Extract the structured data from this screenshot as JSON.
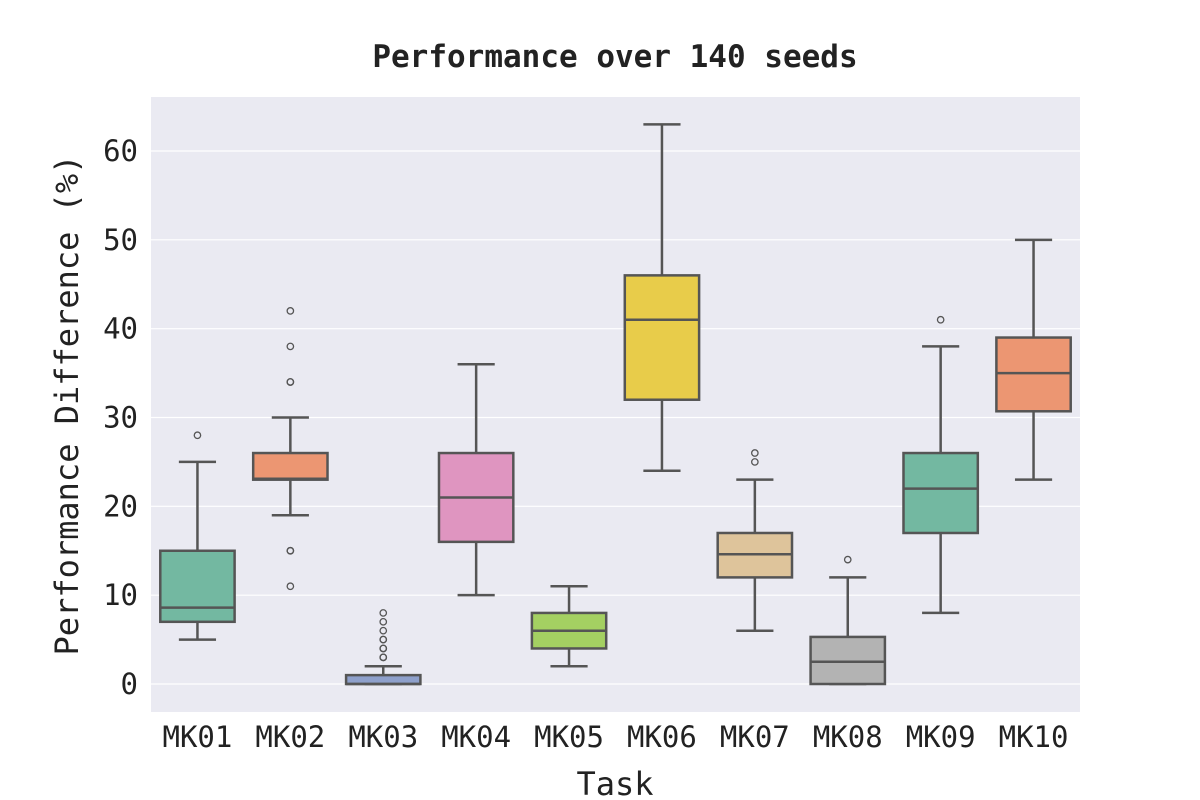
{
  "chart_data": {
    "type": "box",
    "title": "Performance over 140 seeds",
    "xlabel": "Task",
    "ylabel": "Performance Difference (%)",
    "ylim": [
      -3,
      66
    ],
    "yticks": [
      0,
      10,
      20,
      30,
      40,
      50,
      60
    ],
    "grid": true,
    "legend": "none",
    "background": "#eaeaf2",
    "categories": [
      "MK01",
      "MK02",
      "MK03",
      "MK04",
      "MK05",
      "MK06",
      "MK07",
      "MK08",
      "MK09",
      "MK10"
    ],
    "series": [
      {
        "color": "#73b8a1",
        "whisker_low": 5,
        "q1": 7,
        "median": 8.6,
        "q3": 15,
        "whisker_high": 25,
        "outliers": [
          28
        ]
      },
      {
        "color": "#ec9672",
        "whisker_low": 19,
        "q1": 23,
        "median": 23.1,
        "q3": 26,
        "whisker_high": 30,
        "outliers": [
          11,
          15,
          15,
          34,
          34,
          38,
          42
        ]
      },
      {
        "color": "#8ea0cb",
        "whisker_low": 0,
        "q1": 0,
        "median": 0,
        "q3": 1,
        "whisker_high": 2,
        "outliers": [
          3,
          3,
          4,
          4,
          5,
          5,
          6,
          7,
          8
        ]
      },
      {
        "color": "#df95c0",
        "whisker_low": 10,
        "q1": 16,
        "median": 21,
        "q3": 26,
        "whisker_high": 36,
        "outliers": []
      },
      {
        "color": "#a4d062",
        "whisker_low": 2,
        "q1": 4,
        "median": 6,
        "q3": 8,
        "whisker_high": 11,
        "outliers": []
      },
      {
        "color": "#e8cc4a",
        "whisker_low": 24,
        "q1": 32,
        "median": 41,
        "q3": 46,
        "whisker_high": 63,
        "outliers": []
      },
      {
        "color": "#dec49b",
        "whisker_low": 6,
        "q1": 12,
        "median": 14.6,
        "q3": 17,
        "whisker_high": 23,
        "outliers": [
          25,
          26
        ]
      },
      {
        "color": "#b3b3b3",
        "whisker_low": 0,
        "q1": 0,
        "median": 2.5,
        "q3": 5.3,
        "whisker_high": 12,
        "outliers": [
          14
        ]
      },
      {
        "color": "#73b8a1",
        "whisker_low": 8,
        "q1": 17,
        "median": 22,
        "q3": 26,
        "whisker_high": 38,
        "outliers": [
          41
        ]
      },
      {
        "color": "#ec9672",
        "whisker_low": 23,
        "q1": 30.7,
        "median": 35,
        "q3": 39,
        "whisker_high": 50,
        "outliers": []
      }
    ]
  }
}
